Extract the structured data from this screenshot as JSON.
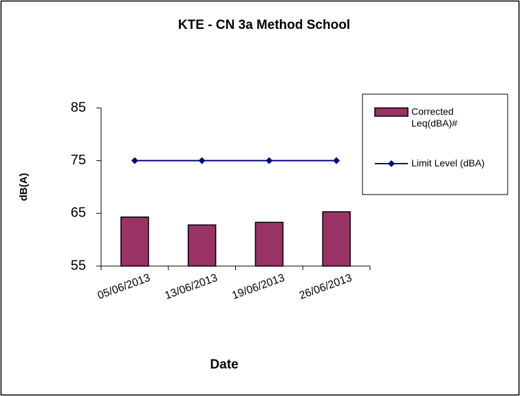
{
  "chart_data": {
    "type": "bar",
    "title": "KTE - CN 3a Method School",
    "x_label": "Date",
    "y_label": "dB(A)",
    "categories": [
      "05/06/2013",
      "13/06/2013",
      "19/06/2013",
      "26/06/2013"
    ],
    "series": [
      {
        "name": "Corrected Leq(dBA)#",
        "type": "bar",
        "color": "#993366",
        "values": [
          64.3,
          62.8,
          63.3,
          65.3
        ]
      },
      {
        "name": "Limit Level (dBA)",
        "type": "line",
        "color": "#000080",
        "values": [
          75,
          75,
          75,
          75
        ]
      }
    ],
    "ylim": [
      55,
      85
    ],
    "yticks": [
      55,
      65,
      75,
      85
    ],
    "legend": "right"
  }
}
